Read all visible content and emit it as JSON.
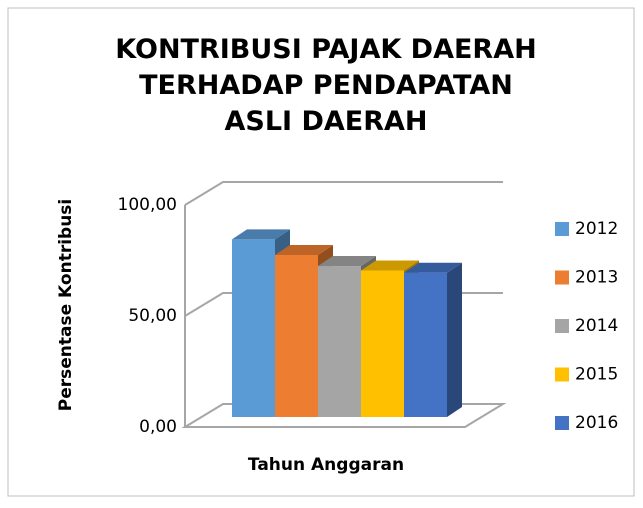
{
  "chart_data": {
    "type": "bar3d",
    "title": "KONTRIBUSI PAJAK DAERAH TERHADAP PENDAPATAN ASLI DAERAH",
    "x_label": "Tahun Anggaran",
    "y_label": "Persentase Kontribusi",
    "categories": [
      null
    ],
    "series": [
      {
        "name": "2012",
        "color": "#5b9bd5",
        "values": [
          80
        ]
      },
      {
        "name": "2013",
        "color": "#ed7d31",
        "values": [
          73
        ]
      },
      {
        "name": "2014",
        "color": "#a5a5a5",
        "values": [
          68
        ]
      },
      {
        "name": "2015",
        "color": "#ffc000",
        "values": [
          66
        ]
      },
      {
        "name": "2016",
        "color": "#4472c4",
        "values": [
          65
        ]
      }
    ],
    "ylim": [
      0,
      100
    ],
    "yticks": [
      {
        "value": 0,
        "label": "0,00"
      },
      {
        "value": 50,
        "label": "50,00"
      },
      {
        "value": 100,
        "label": "100,00"
      }
    ],
    "grid": true,
    "legend": "right"
  }
}
